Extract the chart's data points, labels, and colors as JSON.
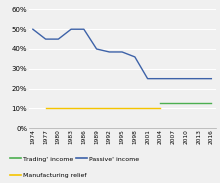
{
  "years": [
    1974,
    1977,
    1980,
    1983,
    1986,
    1989,
    1992,
    1995,
    1998,
    2001,
    2004,
    2007,
    2010,
    2013,
    2016
  ],
  "trading_income": [
    null,
    null,
    null,
    null,
    null,
    null,
    null,
    null,
    null,
    null,
    0.125,
    0.125,
    0.125,
    0.125,
    0.125
  ],
  "passive_income": [
    0.5,
    0.45,
    0.45,
    0.5,
    0.5,
    0.4,
    0.385,
    0.385,
    0.36,
    0.25,
    0.25,
    0.25,
    0.25,
    0.25,
    0.25
  ],
  "manufacturing_relief": [
    null,
    0.1,
    0.1,
    0.1,
    0.1,
    0.1,
    0.1,
    0.1,
    0.1,
    0.1,
    0.1,
    null,
    null,
    null,
    null
  ],
  "trading_color": "#4caf50",
  "passive_color": "#3d62a8",
  "manufacturing_color": "#f5c400",
  "ylim": [
    0,
    0.62
  ],
  "yticks": [
    0.0,
    0.1,
    0.2,
    0.3,
    0.4,
    0.5,
    0.6
  ],
  "ytick_labels": [
    "0%",
    "10%",
    "20%",
    "30%",
    "40%",
    "50%",
    "60%"
  ],
  "legend_trading": "Trading' income",
  "legend_passive": "Passive' income",
  "legend_manufacturing": "Manufacturing relief",
  "bg_color": "#f0f0f0",
  "plot_bg": "#f0f0f0",
  "grid_color": "#ffffff"
}
